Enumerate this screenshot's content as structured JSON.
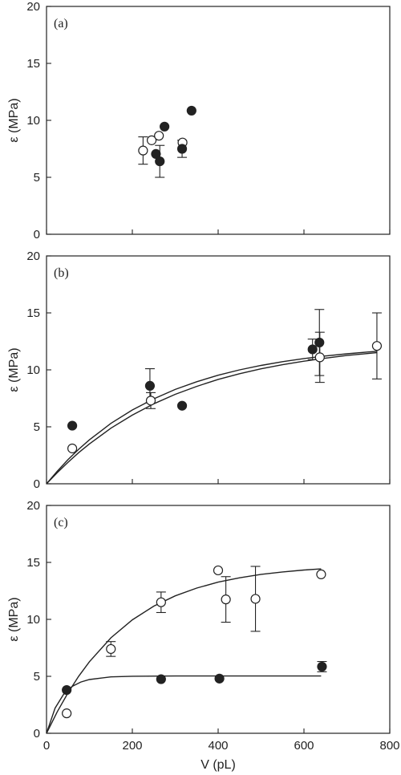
{
  "chart_data": [
    {
      "type": "scatter",
      "panel_label": "(a)",
      "ylabel": "ε (MPa)",
      "xlabel": "",
      "xlim": [
        0,
        800
      ],
      "ylim": [
        0,
        20
      ],
      "x_ticks": [
        0,
        200,
        400,
        600,
        800
      ],
      "y_ticks": [
        0,
        5,
        10,
        15,
        20
      ],
      "show_x_tick_labels": false,
      "series": [
        {
          "marker": "open",
          "points": [
            {
              "x": 225,
              "y": 7.35,
              "err": 1.2
            },
            {
              "x": 245,
              "y": 8.25
            },
            {
              "x": 262,
              "y": 8.65
            },
            {
              "x": 317,
              "y": 8.05
            }
          ]
        },
        {
          "marker": "filled",
          "points": [
            {
              "x": 255,
              "y": 7.05
            },
            {
              "x": 264,
              "y": 6.4,
              "err": 1.4
            },
            {
              "x": 275,
              "y": 9.45
            },
            {
              "x": 316,
              "y": 7.5,
              "err": 0.75
            },
            {
              "x": 338,
              "y": 10.85
            }
          ]
        }
      ],
      "curves": []
    },
    {
      "type": "scatter",
      "panel_label": "(b)",
      "ylabel": "ε (MPa)",
      "xlabel": "",
      "xlim": [
        0,
        800
      ],
      "ylim": [
        0,
        20
      ],
      "x_ticks": [
        0,
        200,
        400,
        600,
        800
      ],
      "y_ticks": [
        0,
        5,
        10,
        15,
        20
      ],
      "show_x_tick_labels": false,
      "series": [
        {
          "marker": "open",
          "points": [
            {
              "x": 60,
              "y": 3.1
            },
            {
              "x": 243,
              "y": 7.3,
              "err": 0.7
            },
            {
              "x": 637,
              "y": 11.1,
              "err": 2.2
            },
            {
              "x": 770,
              "y": 12.1,
              "err": 2.9
            }
          ]
        },
        {
          "marker": "filled",
          "points": [
            {
              "x": 60,
              "y": 5.1
            },
            {
              "x": 241,
              "y": 8.6,
              "err": 1.5
            },
            {
              "x": 316,
              "y": 6.85
            },
            {
              "x": 620,
              "y": 11.8,
              "err": 0.9
            },
            {
              "x": 636,
              "y": 12.4,
              "err": 2.9
            }
          ]
        }
      ],
      "curves": [
        {
          "x": [
            0,
            25,
            50,
            75,
            100,
            150,
            200,
            250,
            300,
            350,
            400,
            450,
            500,
            550,
            600,
            650,
            700,
            750,
            770
          ],
          "y": [
            0,
            1.1,
            2.12,
            3.03,
            3.86,
            5.3,
            6.48,
            7.46,
            8.28,
            8.96,
            9.53,
            10.0,
            10.39,
            10.72,
            10.99,
            11.22,
            11.41,
            11.57,
            11.63
          ]
        },
        {
          "x": [
            0,
            25,
            50,
            75,
            100,
            150,
            200,
            250,
            300,
            350,
            400,
            450,
            500,
            550,
            600,
            650,
            700,
            750,
            770
          ],
          "y": [
            0,
            0.98,
            1.89,
            2.73,
            3.5,
            4.88,
            6.03,
            7.02,
            7.85,
            8.55,
            9.16,
            9.66,
            10.09,
            10.45,
            10.76,
            11.03,
            11.26,
            11.44,
            11.51
          ]
        }
      ]
    },
    {
      "type": "scatter",
      "panel_label": "(c)",
      "ylabel": "ε (MPa)",
      "xlabel": "V (pL)",
      "xlim": [
        0,
        800
      ],
      "ylim": [
        0,
        20
      ],
      "x_ticks": [
        0,
        200,
        400,
        600,
        800
      ],
      "y_ticks": [
        0,
        5,
        10,
        15,
        20
      ],
      "show_x_tick_labels": true,
      "series": [
        {
          "marker": "open",
          "points": [
            {
              "x": 47,
              "y": 1.75
            },
            {
              "x": 150,
              "y": 7.4,
              "err": 0.65
            },
            {
              "x": 267,
              "y": 11.5,
              "err": 0.9
            },
            {
              "x": 400,
              "y": 14.3
            },
            {
              "x": 418,
              "y": 11.75,
              "err": 2.0
            },
            {
              "x": 487,
              "y": 11.8,
              "err": 2.85
            },
            {
              "x": 640,
              "y": 13.95
            }
          ]
        },
        {
          "marker": "filled",
          "points": [
            {
              "x": 47,
              "y": 3.8
            },
            {
              "x": 267,
              "y": 4.75
            },
            {
              "x": 403,
              "y": 4.8
            },
            {
              "x": 642,
              "y": 5.85,
              "err": 0.45
            }
          ]
        }
      ],
      "curves": [
        {
          "x": [
            0,
            20,
            40,
            60,
            80,
            100,
            150,
            200,
            300,
            400,
            500,
            640
          ],
          "y": [
            0,
            2.21,
            3.44,
            4.12,
            4.5,
            4.72,
            4.95,
            5.01,
            5.03,
            5.03,
            5.03,
            5.03
          ]
        },
        {
          "x": [
            0,
            25,
            50,
            75,
            100,
            150,
            200,
            250,
            300,
            350,
            400,
            450,
            500,
            550,
            600,
            640
          ],
          "y": [
            0,
            1.89,
            3.55,
            5.01,
            6.28,
            8.38,
            9.96,
            11.16,
            12.06,
            12.75,
            13.27,
            13.65,
            13.95,
            14.16,
            14.33,
            14.43
          ]
        }
      ]
    }
  ]
}
